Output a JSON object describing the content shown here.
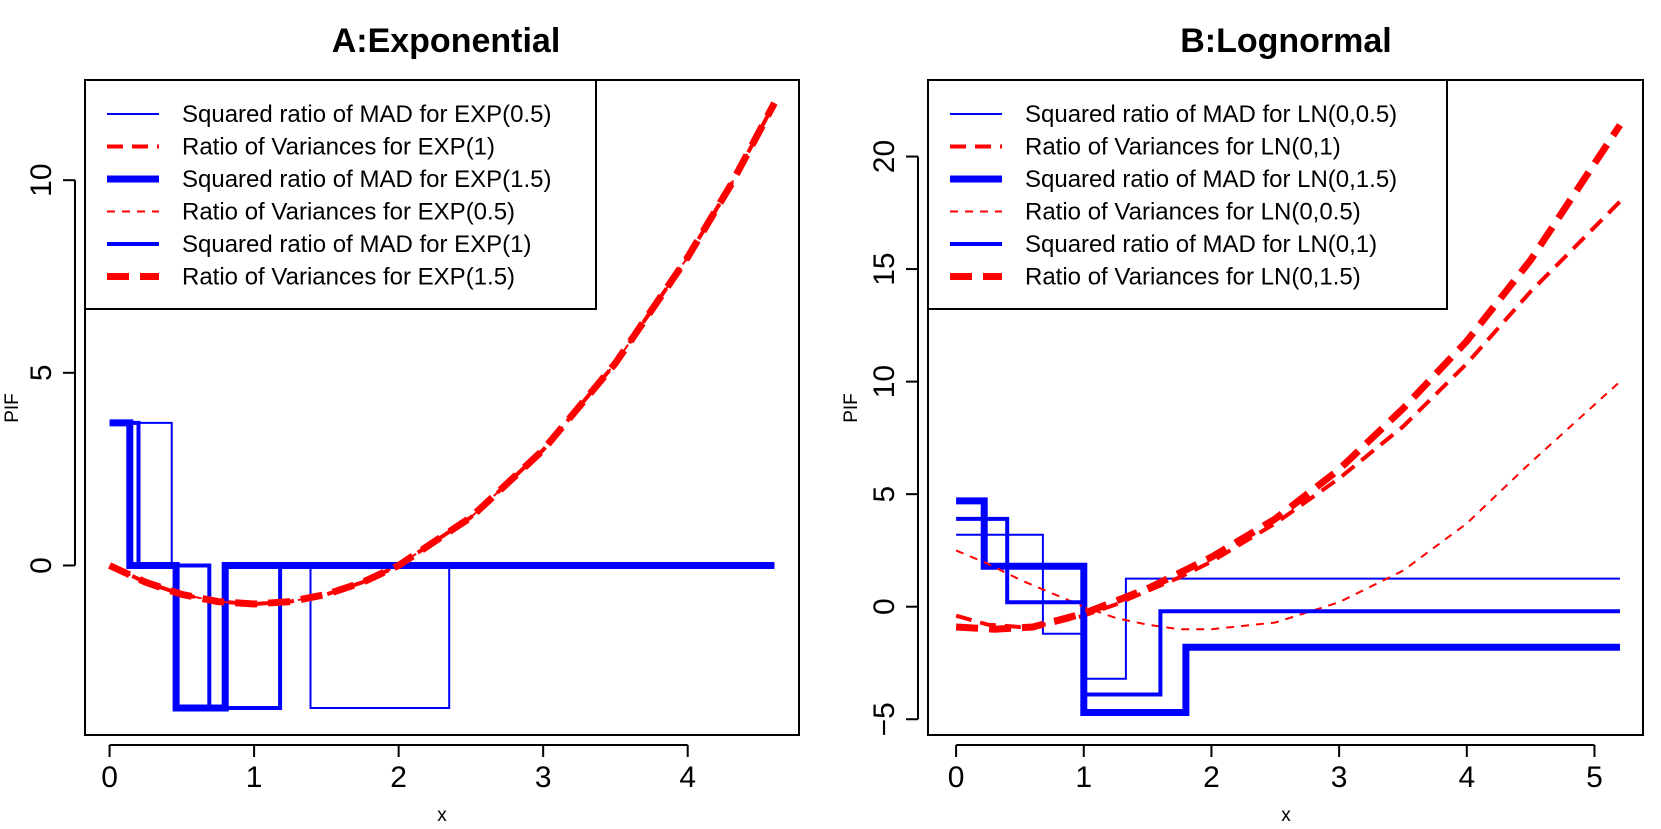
{
  "chart_data": [
    {
      "type": "line",
      "title": "A:Exponential",
      "xlabel": "x",
      "ylabel": "PIF",
      "xlim": [
        -0.17,
        4.77
      ],
      "ylim": [
        -4.4,
        12.6
      ],
      "xticks": [
        "0",
        "1",
        "2",
        "3",
        "4"
      ],
      "yticks": [
        "0",
        "5",
        "10"
      ],
      "legend_position": "top-left",
      "colors": {
        "mad": "#0000ff",
        "var": "#ff0000"
      },
      "series": [
        {
          "name": "Squared ratio of MAD for EXP(0.5)",
          "kind": "mad",
          "weight": "thin",
          "points": [
            [
              0,
              3.7
            ],
            [
              0.43,
              3.7
            ],
            [
              0.43,
              0
            ],
            [
              0.69,
              0
            ],
            [
              0.69,
              -3.7
            ],
            [
              0.79,
              -3.7
            ],
            [
              0.79,
              0
            ],
            [
              1.39,
              0
            ],
            [
              1.39,
              -3.7
            ],
            [
              2.35,
              -3.7
            ],
            [
              2.35,
              0
            ],
            [
              4.6,
              0
            ]
          ]
        },
        {
          "name": "Ratio of Variances for EXP(1)",
          "kind": "var",
          "weight": "medium",
          "points": [
            [
              0,
              0
            ],
            [
              0.25,
              -0.4375
            ],
            [
              0.5,
              -0.75
            ],
            [
              0.75,
              -0.9375
            ],
            [
              1,
              -1
            ],
            [
              1.25,
              -0.9375
            ],
            [
              1.5,
              -0.75
            ],
            [
              1.75,
              -0.4375
            ],
            [
              2,
              0
            ],
            [
              2.5,
              1.25
            ],
            [
              3,
              3
            ],
            [
              3.5,
              5.25
            ],
            [
              4,
              8
            ],
            [
              4.3,
              9.89
            ],
            [
              4.6,
              12.0
            ]
          ]
        },
        {
          "name": "Squared ratio of MAD for EXP(1.5)",
          "kind": "mad",
          "weight": "thick",
          "points": [
            [
              0,
              3.7
            ],
            [
              0.14,
              3.7
            ],
            [
              0.14,
              0
            ],
            [
              0.46,
              0
            ],
            [
              0.46,
              -3.7
            ],
            [
              0.8,
              -3.7
            ],
            [
              0.8,
              0
            ],
            [
              4.6,
              0
            ]
          ]
        },
        {
          "name": "Ratio of Variances for EXP(0.5)",
          "kind": "var",
          "weight": "thin",
          "points": [
            [
              0,
              0
            ],
            [
              0.25,
              -0.4375
            ],
            [
              0.5,
              -0.75
            ],
            [
              0.75,
              -0.9375
            ],
            [
              1,
              -1
            ],
            [
              1.25,
              -0.9375
            ],
            [
              1.5,
              -0.75
            ],
            [
              1.75,
              -0.4375
            ],
            [
              2,
              0
            ],
            [
              2.5,
              1.25
            ],
            [
              3,
              3
            ],
            [
              3.5,
              5.25
            ],
            [
              4,
              8
            ],
            [
              4.3,
              9.89
            ],
            [
              4.6,
              12.0
            ]
          ]
        },
        {
          "name": "Squared ratio of MAD for EXP(1)",
          "kind": "mad",
          "weight": "medium",
          "points": [
            [
              0,
              3.7
            ],
            [
              0.2,
              3.7
            ],
            [
              0.2,
              0
            ],
            [
              0.69,
              0
            ],
            [
              0.69,
              -3.7
            ],
            [
              1.18,
              -3.7
            ],
            [
              1.18,
              0
            ],
            [
              4.6,
              0
            ]
          ]
        },
        {
          "name": "Ratio of Variances for EXP(1.5)",
          "kind": "var",
          "weight": "thick",
          "points": [
            [
              0,
              0
            ],
            [
              0.25,
              -0.4375
            ],
            [
              0.5,
              -0.75
            ],
            [
              0.75,
              -0.9375
            ],
            [
              1,
              -1
            ],
            [
              1.25,
              -0.9375
            ],
            [
              1.5,
              -0.75
            ],
            [
              1.75,
              -0.4375
            ],
            [
              2,
              0
            ],
            [
              2.5,
              1.25
            ],
            [
              3,
              3
            ],
            [
              3.5,
              5.25
            ],
            [
              4,
              8
            ],
            [
              4.3,
              9.89
            ],
            [
              4.6,
              12.0
            ]
          ]
        }
      ]
    },
    {
      "type": "line",
      "title": "B:Lognormal",
      "xlabel": "x",
      "ylabel": "PIF",
      "xlim": [
        -0.22,
        5.38
      ],
      "ylim": [
        -5.7,
        23.4
      ],
      "xticks": [
        "0",
        "1",
        "2",
        "3",
        "4",
        "5"
      ],
      "yticks": [
        "-5",
        "0",
        "5",
        "10",
        "15",
        "20"
      ],
      "legend_position": "top-left",
      "colors": {
        "mad": "#0000ff",
        "var": "#ff0000"
      },
      "series": [
        {
          "name": "Squared ratio of MAD for LN(0,0.5)",
          "kind": "mad",
          "weight": "thin",
          "points": [
            [
              0,
              3.2
            ],
            [
              0.68,
              3.2
            ],
            [
              0.68,
              -1.2
            ],
            [
              1,
              -1.2
            ],
            [
              1,
              -3.2
            ],
            [
              1.33,
              -3.2
            ],
            [
              1.33,
              1.25
            ],
            [
              5.2,
              1.25
            ]
          ]
        },
        {
          "name": "Ratio of Variances for LN(0,1)",
          "kind": "var",
          "weight": "medium",
          "points": [
            [
              0,
              -0.4
            ],
            [
              0.25,
              -0.8
            ],
            [
              0.5,
              -0.9
            ],
            [
              0.75,
              -0.75
            ],
            [
              1,
              -0.4
            ],
            [
              1.25,
              0.1
            ],
            [
              1.5,
              0.7
            ],
            [
              1.75,
              1.3
            ],
            [
              2,
              2.0
            ],
            [
              2.5,
              3.7
            ],
            [
              3,
              5.7
            ],
            [
              3.5,
              8.0
            ],
            [
              4,
              10.8
            ],
            [
              4.5,
              14.0
            ],
            [
              5.2,
              18.0
            ]
          ]
        },
        {
          "name": "Squared ratio of MAD for LN(0,1.5)",
          "kind": "mad",
          "weight": "thick",
          "points": [
            [
              0,
              4.7
            ],
            [
              0.22,
              4.7
            ],
            [
              0.22,
              1.8
            ],
            [
              1,
              1.8
            ],
            [
              1,
              -4.7
            ],
            [
              1.8,
              -4.7
            ],
            [
              1.8,
              -1.8
            ],
            [
              5.2,
              -1.8
            ]
          ]
        },
        {
          "name": "Ratio of Variances for LN(0,0.5)",
          "kind": "var",
          "weight": "thin",
          "points": [
            [
              0,
              2.5
            ],
            [
              0.25,
              1.9
            ],
            [
              0.5,
              1.2
            ],
            [
              0.75,
              0.6
            ],
            [
              1,
              0.0
            ],
            [
              1.25,
              -0.5
            ],
            [
              1.5,
              -0.8
            ],
            [
              1.75,
              -1.0
            ],
            [
              2,
              -1.0
            ],
            [
              2.5,
              -0.7
            ],
            [
              3,
              0.2
            ],
            [
              3.5,
              1.6
            ],
            [
              4,
              3.7
            ],
            [
              4.5,
              6.4
            ],
            [
              5.2,
              10.0
            ]
          ]
        },
        {
          "name": "Squared ratio of MAD for LN(0,1)",
          "kind": "mad",
          "weight": "medium",
          "points": [
            [
              0,
              3.9
            ],
            [
              0.4,
              3.9
            ],
            [
              0.4,
              0.2
            ],
            [
              1,
              0.2
            ],
            [
              1,
              -3.9
            ],
            [
              1.6,
              -3.9
            ],
            [
              1.6,
              -0.2
            ],
            [
              5.2,
              -0.2
            ]
          ]
        },
        {
          "name": "Ratio of Variances for LN(0,1.5)",
          "kind": "var",
          "weight": "thick",
          "points": [
            [
              0,
              -0.9
            ],
            [
              0.3,
              -1.0
            ],
            [
              0.6,
              -0.9
            ],
            [
              1,
              -0.3
            ],
            [
              1.5,
              0.8
            ],
            [
              2,
              2.2
            ],
            [
              2.5,
              3.9
            ],
            [
              3,
              6.1
            ],
            [
              3.5,
              8.8
            ],
            [
              4,
              11.8
            ],
            [
              4.5,
              15.4
            ],
            [
              5.2,
              21.4
            ]
          ]
        }
      ]
    }
  ]
}
